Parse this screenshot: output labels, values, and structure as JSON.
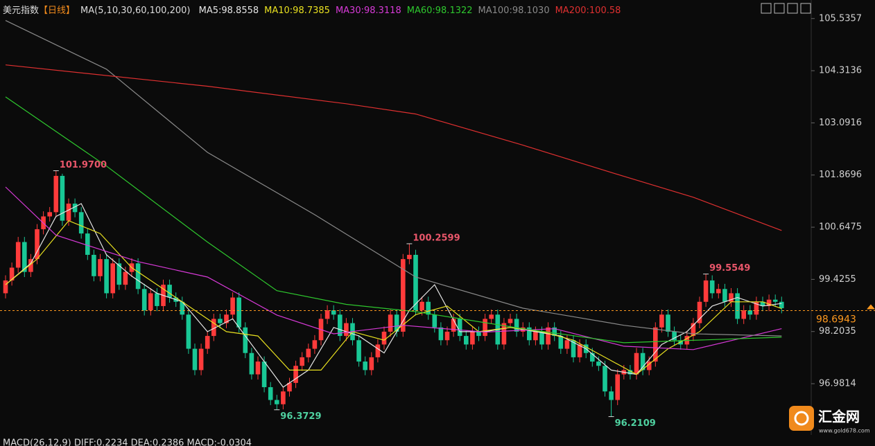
{
  "chart_data": {
    "type": "candlestick",
    "title": "美元指数",
    "period": "【日线】",
    "indicator": "MA(5,10,30,60,100,200)",
    "up_color": "#ff3b3b",
    "down_color": "#19c795",
    "ylim": [
      95.83,
      105.97
    ],
    "yticks": [
      105.5357,
      104.3136,
      103.0916,
      101.8696,
      100.6475,
      99.4255,
      98.2035,
      96.9814
    ],
    "last_price": 98.6943,
    "last_price_color": "#ff9a1f",
    "open": [
      99.1,
      99.4,
      99.7,
      100.3,
      99.6,
      99.9,
      100.6,
      100.9,
      101.0,
      101.85,
      100.8,
      101.2,
      101.0,
      100.5,
      100.0,
      99.5,
      99.9,
      99.1,
      99.8,
      99.3,
      99.6,
      99.8,
      99.2,
      98.7,
      99.1,
      98.8,
      99.3,
      99.0,
      98.9,
      98.6,
      97.8,
      97.3,
      97.8,
      98.1,
      98.5,
      98.4,
      98.6,
      99.0,
      98.3,
      97.7,
      97.2,
      97.5,
      96.9,
      96.6,
      96.5,
      96.8,
      97.0,
      97.4,
      97.6,
      97.8,
      98.0,
      98.5,
      98.7,
      98.6,
      98.1,
      98.4,
      98.0,
      97.5,
      97.3,
      97.6,
      97.9,
      98.2,
      98.6,
      98.2,
      99.9,
      100.0,
      98.7,
      98.9,
      98.6,
      98.3,
      98.0,
      98.2,
      98.5,
      98.1,
      97.9,
      98.2,
      98.1,
      98.5,
      98.6,
      97.9,
      98.4,
      98.5,
      98.2,
      98.3,
      98.0,
      98.2,
      97.9,
      98.3,
      98.1,
      97.8,
      98.0,
      97.6,
      97.9,
      97.7,
      97.5,
      97.4,
      96.8,
      96.6,
      97.2,
      97.3,
      97.2,
      97.7,
      97.3,
      97.5,
      98.3,
      98.6,
      98.2,
      98.0,
      97.9,
      98.1,
      98.4,
      98.9,
      99.4,
      99.1,
      99.2,
      98.9,
      99.1,
      98.5,
      98.7,
      98.6,
      98.9,
      98.8,
      98.95,
      98.9
    ],
    "high": [
      99.52,
      99.82,
      100.42,
      100.42,
      100.02,
      100.72,
      101.02,
      101.12,
      101.97,
      101.9,
      101.32,
      101.32,
      101.12,
      100.62,
      100.12,
      100.02,
      100.02,
      99.92,
      99.92,
      99.72,
      99.92,
      99.92,
      99.32,
      99.22,
      99.22,
      99.42,
      99.42,
      99.12,
      99.02,
      98.72,
      97.92,
      97.92,
      98.22,
      98.62,
      98.62,
      98.72,
      99.12,
      99.12,
      98.42,
      97.82,
      97.62,
      97.62,
      97.02,
      96.72,
      96.92,
      97.12,
      97.52,
      97.72,
      97.92,
      98.12,
      98.62,
      98.82,
      98.82,
      98.72,
      98.52,
      98.52,
      98.12,
      97.62,
      97.72,
      98.02,
      98.32,
      98.72,
      98.72,
      100.02,
      100.26,
      100.12,
      99.02,
      99.02,
      98.72,
      98.42,
      98.32,
      98.62,
      98.62,
      98.22,
      98.32,
      98.32,
      98.62,
      98.72,
      98.72,
      98.52,
      98.62,
      98.62,
      98.42,
      98.42,
      98.32,
      98.32,
      98.42,
      98.42,
      98.22,
      98.12,
      98.12,
      98.02,
      98.02,
      97.82,
      97.62,
      97.52,
      96.92,
      97.32,
      97.42,
      97.42,
      97.82,
      97.82,
      97.62,
      98.42,
      98.72,
      98.72,
      98.32,
      98.12,
      98.22,
      98.52,
      99.02,
      99.55,
      99.52,
      99.32,
      99.32,
      99.22,
      99.22,
      98.82,
      98.82,
      99.02,
      99.02,
      99.07,
      99.07,
      99.02
    ],
    "low": [
      98.98,
      99.28,
      99.58,
      99.48,
      99.48,
      99.78,
      100.48,
      100.78,
      100.88,
      100.68,
      100.68,
      100.88,
      100.38,
      99.88,
      99.38,
      99.38,
      98.98,
      98.98,
      99.18,
      99.18,
      99.48,
      99.08,
      98.58,
      98.58,
      98.68,
      98.68,
      98.88,
      98.78,
      98.48,
      97.68,
      97.18,
      97.18,
      97.68,
      97.98,
      98.28,
      98.28,
      98.48,
      98.18,
      97.58,
      97.08,
      97.08,
      96.78,
      96.48,
      96.37,
      96.38,
      96.68,
      96.88,
      97.28,
      97.48,
      97.68,
      97.88,
      98.38,
      98.48,
      97.98,
      97.98,
      97.88,
      97.38,
      97.18,
      97.18,
      97.48,
      97.78,
      98.08,
      98.08,
      98.08,
      99.78,
      98.58,
      98.58,
      98.48,
      98.18,
      97.88,
      97.88,
      98.08,
      97.98,
      97.78,
      97.78,
      97.98,
      97.98,
      98.38,
      97.78,
      97.78,
      98.28,
      98.08,
      98.08,
      97.88,
      97.88,
      97.78,
      97.78,
      97.98,
      97.68,
      97.68,
      97.48,
      97.48,
      97.58,
      97.38,
      97.28,
      96.68,
      96.21,
      96.48,
      97.08,
      97.08,
      97.08,
      97.18,
      97.18,
      97.38,
      98.18,
      98.08,
      97.88,
      97.78,
      97.78,
      97.98,
      98.28,
      98.78,
      98.98,
      98.98,
      98.78,
      98.78,
      98.38,
      98.38,
      98.48,
      98.48,
      98.68,
      98.68,
      98.78,
      98.63
    ],
    "close": [
      99.4,
      99.7,
      100.3,
      99.6,
      99.9,
      100.6,
      100.9,
      101.0,
      101.85,
      100.8,
      101.2,
      101.0,
      100.5,
      100.0,
      99.5,
      99.9,
      99.1,
      99.8,
      99.3,
      99.6,
      99.8,
      99.2,
      98.7,
      99.1,
      98.8,
      99.3,
      99.0,
      98.9,
      98.6,
      97.8,
      97.3,
      97.8,
      98.1,
      98.5,
      98.4,
      98.6,
      99.0,
      98.3,
      97.7,
      97.2,
      97.5,
      96.9,
      96.6,
      96.5,
      96.8,
      97.0,
      97.4,
      97.6,
      97.8,
      98.0,
      98.5,
      98.7,
      98.6,
      98.1,
      98.4,
      98.0,
      97.5,
      97.3,
      97.6,
      97.9,
      98.2,
      98.6,
      98.2,
      99.9,
      100.0,
      98.7,
      98.9,
      98.6,
      98.3,
      98.0,
      98.2,
      98.5,
      98.1,
      97.9,
      98.2,
      98.1,
      98.5,
      98.6,
      97.9,
      98.4,
      98.5,
      98.2,
      98.3,
      98.0,
      98.2,
      97.9,
      98.3,
      98.1,
      97.8,
      98.0,
      97.6,
      97.9,
      97.7,
      97.5,
      97.4,
      96.8,
      96.6,
      97.2,
      97.3,
      97.2,
      97.7,
      97.3,
      97.5,
      98.3,
      98.6,
      98.2,
      98.0,
      97.9,
      98.1,
      98.4,
      98.9,
      99.4,
      99.1,
      99.2,
      98.9,
      99.1,
      98.5,
      98.7,
      98.6,
      98.9,
      98.8,
      98.95,
      98.9,
      98.75
    ],
    "series": [
      {
        "legend_label": "MA5:98.8558",
        "color": "#e6e6e6",
        "x": [
          0,
          4,
          8,
          12,
          16,
          20,
          24,
          28,
          32,
          36,
          40,
          44,
          48,
          52,
          56,
          60,
          64,
          68,
          72,
          76,
          80,
          84,
          88,
          92,
          96,
          100,
          104,
          108,
          112,
          116,
          120,
          123
        ],
        "values": [
          99.3,
          99.8,
          100.9,
          101.2,
          100.0,
          99.5,
          99.1,
          98.9,
          98.2,
          98.5,
          97.7,
          96.9,
          97.3,
          98.3,
          98.1,
          97.7,
          98.7,
          99.3,
          98.2,
          98.2,
          98.3,
          98.2,
          98.1,
          97.8,
          97.3,
          97.2,
          97.9,
          98.2,
          98.8,
          99.0,
          98.8,
          98.86
        ]
      },
      {
        "legend_label": "MA10:98.7385",
        "color": "#e8e020",
        "x": [
          0,
          5,
          10,
          15,
          20,
          25,
          30,
          35,
          40,
          45,
          50,
          55,
          60,
          65,
          70,
          75,
          80,
          85,
          90,
          95,
          100,
          105,
          110,
          115,
          120,
          123
        ],
        "values": [
          99.3,
          99.9,
          100.8,
          100.5,
          99.7,
          99.2,
          98.7,
          98.2,
          98.1,
          97.3,
          97.3,
          98.2,
          98.0,
          98.6,
          98.8,
          98.2,
          98.3,
          98.2,
          98.0,
          97.6,
          97.2,
          97.8,
          98.2,
          98.9,
          98.9,
          98.74
        ]
      },
      {
        "legend_label": "MA30:98.3118",
        "color": "#d83ad8",
        "x": [
          0,
          8,
          21,
          32,
          43,
          52,
          63,
          76,
          87,
          98,
          109,
          123
        ],
        "values": [
          101.59,
          100.46,
          99.84,
          99.48,
          98.59,
          98.15,
          98.35,
          98.19,
          98.27,
          97.86,
          97.78,
          98.27
        ]
      },
      {
        "legend_label": "MA60:98.1322",
        "color": "#2ec82e",
        "x": [
          0,
          16,
          32,
          43,
          54,
          65,
          82,
          98,
          123
        ],
        "values": [
          103.7,
          102.08,
          100.3,
          99.16,
          98.84,
          98.67,
          98.27,
          97.94,
          98.07
        ]
      },
      {
        "legend_label": "MA100:98.1030",
        "color": "#8a8a8a",
        "x": [
          0,
          16,
          32,
          49,
          65,
          82,
          98,
          109,
          123
        ],
        "values": [
          105.49,
          104.35,
          102.4,
          100.94,
          99.48,
          98.75,
          98.35,
          98.15,
          98.1
        ]
      },
      {
        "legend_label": "MA200:100.58",
        "color": "#e03030",
        "x": [
          0,
          32,
          54,
          65,
          82,
          98,
          109,
          123
        ],
        "values": [
          104.45,
          103.95,
          103.54,
          103.3,
          102.57,
          101.84,
          101.35,
          100.57
        ]
      }
    ],
    "annotations": [
      {
        "kind": "high",
        "value": 101.97,
        "label": "101.9700"
      },
      {
        "kind": "high",
        "value": 100.26,
        "label": "100.2599"
      },
      {
        "kind": "high",
        "value": 99.55,
        "label": "99.5549"
      },
      {
        "kind": "low",
        "value": 96.37,
        "label": "96.3729"
      },
      {
        "kind": "low",
        "value": 96.21,
        "label": "96.2109"
      }
    ],
    "footer": "MACD(26,12,9)  DIFF:0.2234  DEA:0.2386  MACD:-0.0304",
    "watermark": {
      "name": "汇金网",
      "url": "www.gold678.com"
    }
  }
}
